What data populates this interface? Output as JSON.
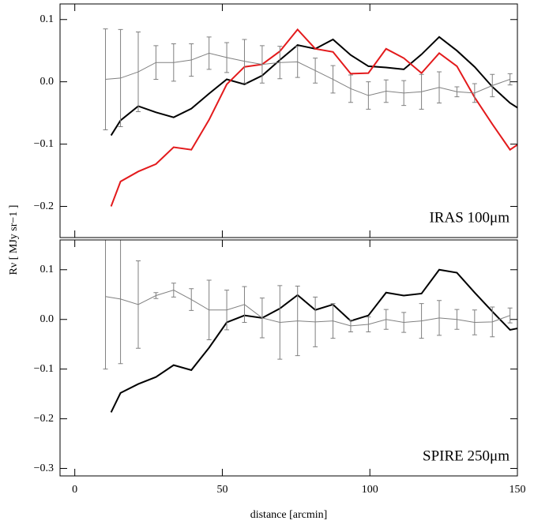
{
  "y_label": "Rν [ MJy sr−1 ]",
  "chart_data": [
    {
      "type": "line",
      "annotation": "IRAS 100μm",
      "xlim": [
        -5,
        150
      ],
      "xticks": [
        0,
        50,
        100,
        150
      ],
      "show_xtick_labels": false,
      "ylim": [
        -0.25,
        0.125
      ],
      "yticks": [
        {
          "value": -0.2,
          "label": "−0.2"
        },
        {
          "value": -0.1,
          "label": "−0.1"
        },
        {
          "value": 0,
          "label": "0.0"
        },
        0.1
      ],
      "series": [
        {
          "color": "#000000",
          "width": 2,
          "x": [
            12.3,
            15.5,
            21.5,
            27.5,
            33.5,
            39.5,
            45.5,
            51.5,
            57.5,
            63.5,
            69.5,
            75.5,
            81.5,
            87.5,
            93.5,
            99.5,
            105.5,
            111.5,
            117.5,
            123.5,
            129.5,
            135.5,
            141.5,
            147.5,
            153.5
          ],
          "values": [
            -0.086,
            -0.062,
            -0.039,
            -0.049,
            -0.057,
            -0.043,
            -0.019,
            0.004,
            -0.004,
            0.01,
            0.035,
            0.059,
            0.053,
            0.068,
            0.043,
            0.025,
            0.023,
            0.02,
            0.044,
            0.072,
            0.05,
            0.024,
            -0.008,
            -0.034,
            -0.052
          ]
        },
        {
          "color": "#e31a1c",
          "width": 2,
          "x": [
            12.3,
            15.5,
            21.5,
            27.5,
            33.5,
            39.5,
            45.5,
            51.5,
            57.5,
            63.5,
            69.5,
            75.5,
            81.5,
            87.5,
            93.5,
            99.5,
            105.5,
            111.5,
            117.5,
            123.5,
            129.5,
            135.5,
            141.5,
            147.5,
            153.5
          ],
          "values": [
            -0.2,
            -0.16,
            -0.144,
            -0.132,
            -0.105,
            -0.109,
            -0.061,
            -0.004,
            0.024,
            0.028,
            0.049,
            0.084,
            0.053,
            0.048,
            0.013,
            0.014,
            0.053,
            0.038,
            0.014,
            0.046,
            0.025,
            -0.025,
            -0.068,
            -0.109,
            -0.09
          ]
        },
        {
          "color": "#808080",
          "width": 1,
          "x": [
            10.4,
            15.5,
            21.5,
            27.5,
            33.5,
            39.5,
            45.5,
            51.5,
            57.5,
            63.5,
            69.5,
            75.5,
            81.5,
            87.5,
            93.5,
            99.5,
            105.5,
            111.5,
            117.5,
            123.5,
            129.5,
            135.5,
            141.5,
            147.5
          ],
          "values": [
            0.004,
            0.006,
            0.016,
            0.031,
            0.031,
            0.035,
            0.046,
            0.039,
            0.033,
            0.028,
            0.031,
            0.032,
            0.018,
            0.004,
            -0.011,
            -0.022,
            -0.015,
            -0.018,
            -0.016,
            -0.009,
            -0.016,
            -0.018,
            -0.006,
            0.004
          ],
          "errors": [
            0.081,
            0.078,
            0.064,
            0.027,
            0.03,
            0.026,
            0.026,
            0.024,
            0.035,
            0.03,
            0.026,
            0.025,
            0.02,
            0.022,
            0.022,
            0.022,
            0.018,
            0.02,
            0.028,
            0.025,
            0.008,
            0.015,
            0.018,
            0.009
          ]
        }
      ]
    },
    {
      "type": "line",
      "annotation": "SPIRE 250μm",
      "xlabel": "distance [arcmin]",
      "xlim": [
        -5,
        150
      ],
      "xticks": [
        0,
        50,
        100,
        150
      ],
      "show_xtick_labels": true,
      "ylim": [
        -0.315,
        0.16
      ],
      "yticks": [
        {
          "value": -0.3,
          "label": "−0.3"
        },
        {
          "value": -0.2,
          "label": "−0.2"
        },
        {
          "value": -0.1,
          "label": "−0.1"
        },
        {
          "value": 0,
          "label": "0.0"
        },
        0.1
      ],
      "series": [
        {
          "color": "#000000",
          "width": 2,
          "x": [
            12.3,
            15.5,
            21.5,
            27.5,
            33.5,
            39.5,
            45.5,
            51.5,
            57.5,
            63.5,
            69.5,
            75.5,
            81.5,
            87.5,
            93.5,
            99.5,
            105.5,
            111.5,
            117.5,
            123.5,
            129.5,
            135.5,
            141.5,
            147.5,
            153.5
          ],
          "values": [
            -0.187,
            -0.148,
            -0.13,
            -0.116,
            -0.092,
            -0.102,
            -0.057,
            -0.006,
            0.008,
            0.003,
            0.022,
            0.049,
            0.019,
            0.03,
            -0.003,
            0.008,
            0.054,
            0.048,
            0.052,
            0.1,
            0.094,
            0.054,
            0.016,
            -0.021,
            -0.014
          ]
        },
        {
          "color": "#808080",
          "width": 1,
          "x": [
            10.4,
            15.5,
            21.5,
            27.5,
            33.5,
            39.5,
            45.5,
            51.5,
            57.5,
            63.5,
            69.5,
            75.5,
            81.5,
            87.5,
            93.5,
            99.5,
            105.5,
            111.5,
            117.5,
            123.5,
            129.5,
            135.5,
            141.5,
            147.5
          ],
          "values": [
            0.046,
            0.041,
            0.03,
            0.048,
            0.059,
            0.04,
            0.019,
            0.019,
            0.03,
            0.003,
            -0.006,
            -0.003,
            -0.005,
            -0.003,
            -0.013,
            -0.01,
            0.0,
            -0.006,
            -0.003,
            0.003,
            0.0,
            -0.006,
            -0.005,
            0.008
          ],
          "errors": [
            0.146,
            0.13,
            0.088,
            0.006,
            0.014,
            0.022,
            0.06,
            0.04,
            0.036,
            0.04,
            0.074,
            0.07,
            0.05,
            0.035,
            0.012,
            0.015,
            0.02,
            0.02,
            0.035,
            0.035,
            0.02,
            0.025,
            0.03,
            0.015
          ]
        }
      ]
    }
  ]
}
